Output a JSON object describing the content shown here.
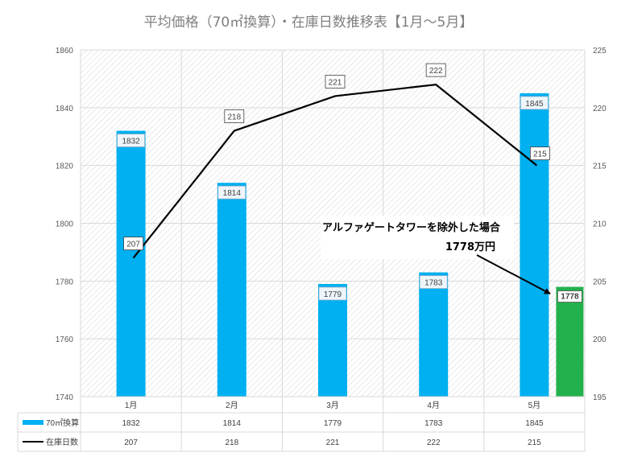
{
  "chart_data": {
    "type": "bar",
    "title": "平均価格（70㎡換算）・在庫日数推移表【1月～5月】",
    "categories": [
      "1月",
      "2月",
      "3月",
      "4月",
      "5月"
    ],
    "series": [
      {
        "name": "70㎡換算",
        "kind": "bar",
        "axis": "left",
        "color": "#00B0F0",
        "values": [
          1832,
          1814,
          1779,
          1783,
          1845
        ],
        "labels": [
          "1832",
          "1814",
          "1779",
          "1783",
          "1845"
        ]
      },
      {
        "name": "在庫日数",
        "kind": "line",
        "axis": "right",
        "color": "#000000",
        "values": [
          207,
          218,
          221,
          222,
          215
        ],
        "labels": [
          "207",
          "218",
          "221",
          "222",
          "215"
        ]
      }
    ],
    "extra_bar": {
      "category_index": 4,
      "value": 1778,
      "label": "1778",
      "color": "#22B14C"
    },
    "annotation": {
      "line1": "アルファゲートタワーを除外した場合",
      "line2": "1778万円"
    },
    "y_left": {
      "min": 1740,
      "max": 1860,
      "step": 20,
      "ticks": [
        "1740",
        "1760",
        "1780",
        "1800",
        "1820",
        "1840",
        "1860"
      ]
    },
    "y_right": {
      "min": 195,
      "max": 225,
      "step": 5,
      "ticks": [
        "195",
        "200",
        "205",
        "210",
        "215",
        "220",
        "225"
      ]
    },
    "grid": true,
    "legend": "data-table-below",
    "table": {
      "rows": [
        {
          "name": "70㎡換算",
          "values": [
            "1832",
            "1814",
            "1779",
            "1783",
            "1845"
          ]
        },
        {
          "name": "在庫日数",
          "values": [
            "207",
            "218",
            "221",
            "222",
            "215"
          ]
        }
      ]
    }
  }
}
